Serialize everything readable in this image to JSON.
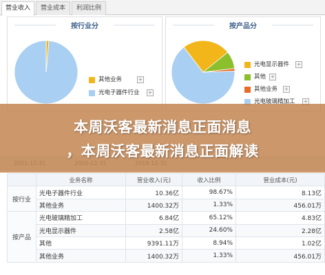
{
  "tabs": [
    {
      "label": "营业收入",
      "active": true
    },
    {
      "label": "营业成本",
      "active": false
    },
    {
      "label": "利润比例",
      "active": false
    }
  ],
  "panels": {
    "left": {
      "title": "按行业分",
      "legend": [
        {
          "label": "其他业务",
          "color": "#f2b61a"
        },
        {
          "label": "光电子器件行业",
          "color": "#a9cff2"
        }
      ]
    },
    "right": {
      "title": "按产品分",
      "legend": [
        {
          "label": "光电显示器件",
          "color": "#f2b61a"
        },
        {
          "label": "其他",
          "color": "#8cbf2c"
        },
        {
          "label": "其他业务",
          "color": "#e86d2a"
        },
        {
          "label": "光电玻璃精加工",
          "color": "#a9cff2"
        }
      ]
    }
  },
  "chart_data": [
    {
      "type": "pie",
      "title": "按行业分",
      "labels": [
        "光电子器件行业",
        "其他业务"
      ],
      "values": [
        98.67,
        1.33
      ],
      "colors": [
        "#a9cff2",
        "#f2b61a"
      ]
    },
    {
      "type": "pie",
      "title": "按产品分",
      "labels": [
        "光电玻璃精加工",
        "光电显示器件",
        "其他",
        "其他业务"
      ],
      "values": [
        65.12,
        24.6,
        8.94,
        1.33
      ],
      "colors": [
        "#a9cff2",
        "#f2b61a",
        "#8cbf2c",
        "#e86d2a"
      ]
    }
  ],
  "dates": [
    "2021-12-31",
    "2020-12-31",
    "2019-12-31"
  ],
  "banner": {
    "line1": "本周沃客最新消息正面消息",
    "line2": "，本周沃客最新消息正面解读"
  },
  "table": {
    "headers": [
      "业务名称",
      "营业收入(元)",
      "收入比例",
      "营业成本(元)"
    ],
    "groups": [
      {
        "label": "按行业",
        "rows": [
          [
            "光电子器件行业",
            "10.36亿",
            "98.67%",
            "8.13亿"
          ],
          [
            "其他业务",
            "1400.32万",
            "1.33%",
            "456.01万"
          ]
        ]
      },
      {
        "label": "按产品",
        "rows": [
          [
            "光电玻璃精加工",
            "6.84亿",
            "65.12%",
            "4.83亿"
          ],
          [
            "光电显示器件",
            "2.58亿",
            "24.60%",
            "2.28亿"
          ],
          [
            "其他",
            "9391.11万",
            "8.94%",
            "1.02亿"
          ],
          [
            "其他业务",
            "1400.32万",
            "1.33%",
            "456.01万"
          ]
        ]
      }
    ]
  }
}
